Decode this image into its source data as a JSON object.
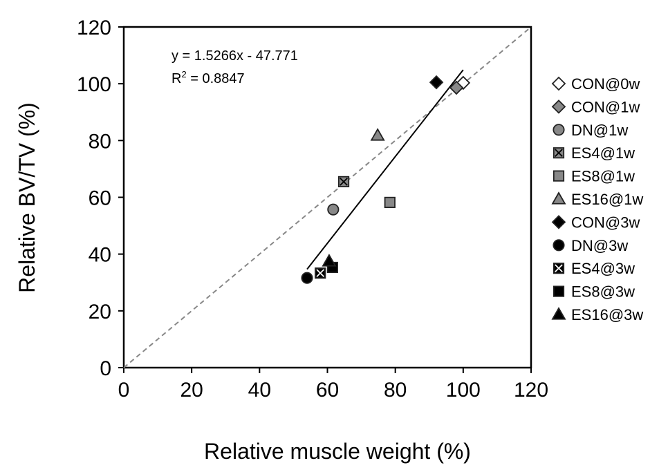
{
  "chart_data": {
    "type": "scatter",
    "xlabel": "Relative muscle weight (%)",
    "ylabel": "Relative BV/TV (%)",
    "xlim": [
      0,
      120
    ],
    "ylim": [
      0,
      120
    ],
    "xticks": [
      "0",
      "20",
      "40",
      "60",
      "80",
      "100",
      "120"
    ],
    "yticks": [
      "0",
      "20",
      "40",
      "60",
      "80",
      "100",
      "120"
    ],
    "grid": false,
    "legend_placement": "right",
    "equation": "y = 1.5266x - 47.771",
    "r2_prefix": "R",
    "r2_sup": "2",
    "r2_value": " = 0.8847",
    "trendline": {
      "slope": 1.5266,
      "intercept": -47.771,
      "x_range": [
        54,
        100
      ]
    },
    "identity_line": {
      "x_range": [
        0,
        120
      ],
      "color": "#888888",
      "style": "dashed"
    },
    "series": [
      {
        "name": "CON@0w",
        "marker": "diamond",
        "fill": "#ffffff",
        "x": 100,
        "y": 100.3
      },
      {
        "name": "CON@1w",
        "marker": "diamond",
        "fill": "#888888",
        "x": 98,
        "y": 98.6
      },
      {
        "name": "DN@1w",
        "marker": "circle",
        "fill": "#888888",
        "x": 61.7,
        "y": 55.7
      },
      {
        "name": "ES4@1w",
        "marker": "xsquare",
        "fill": "#888888",
        "x": 64.8,
        "y": 65.5
      },
      {
        "name": "ES8@1w",
        "marker": "square",
        "fill": "#888888",
        "x": 78.4,
        "y": 58.2
      },
      {
        "name": "ES16@1w",
        "marker": "triangle",
        "fill": "#888888",
        "x": 74.8,
        "y": 81.8
      },
      {
        "name": "CON@3w",
        "marker": "diamond",
        "fill": "#000000",
        "x": 92.1,
        "y": 100.5
      },
      {
        "name": "DN@3w",
        "marker": "circle",
        "fill": "#000000",
        "x": 54,
        "y": 31.6
      },
      {
        "name": "ES4@3w",
        "marker": "xsquare",
        "fill": "#000000",
        "x": 57.9,
        "y": 33.3
      },
      {
        "name": "ES8@3w",
        "marker": "square",
        "fill": "#000000",
        "x": 61.5,
        "y": 35.3
      },
      {
        "name": "ES16@3w",
        "marker": "triangle",
        "fill": "#000000",
        "x": 60.5,
        "y": 37.5
      }
    ]
  }
}
